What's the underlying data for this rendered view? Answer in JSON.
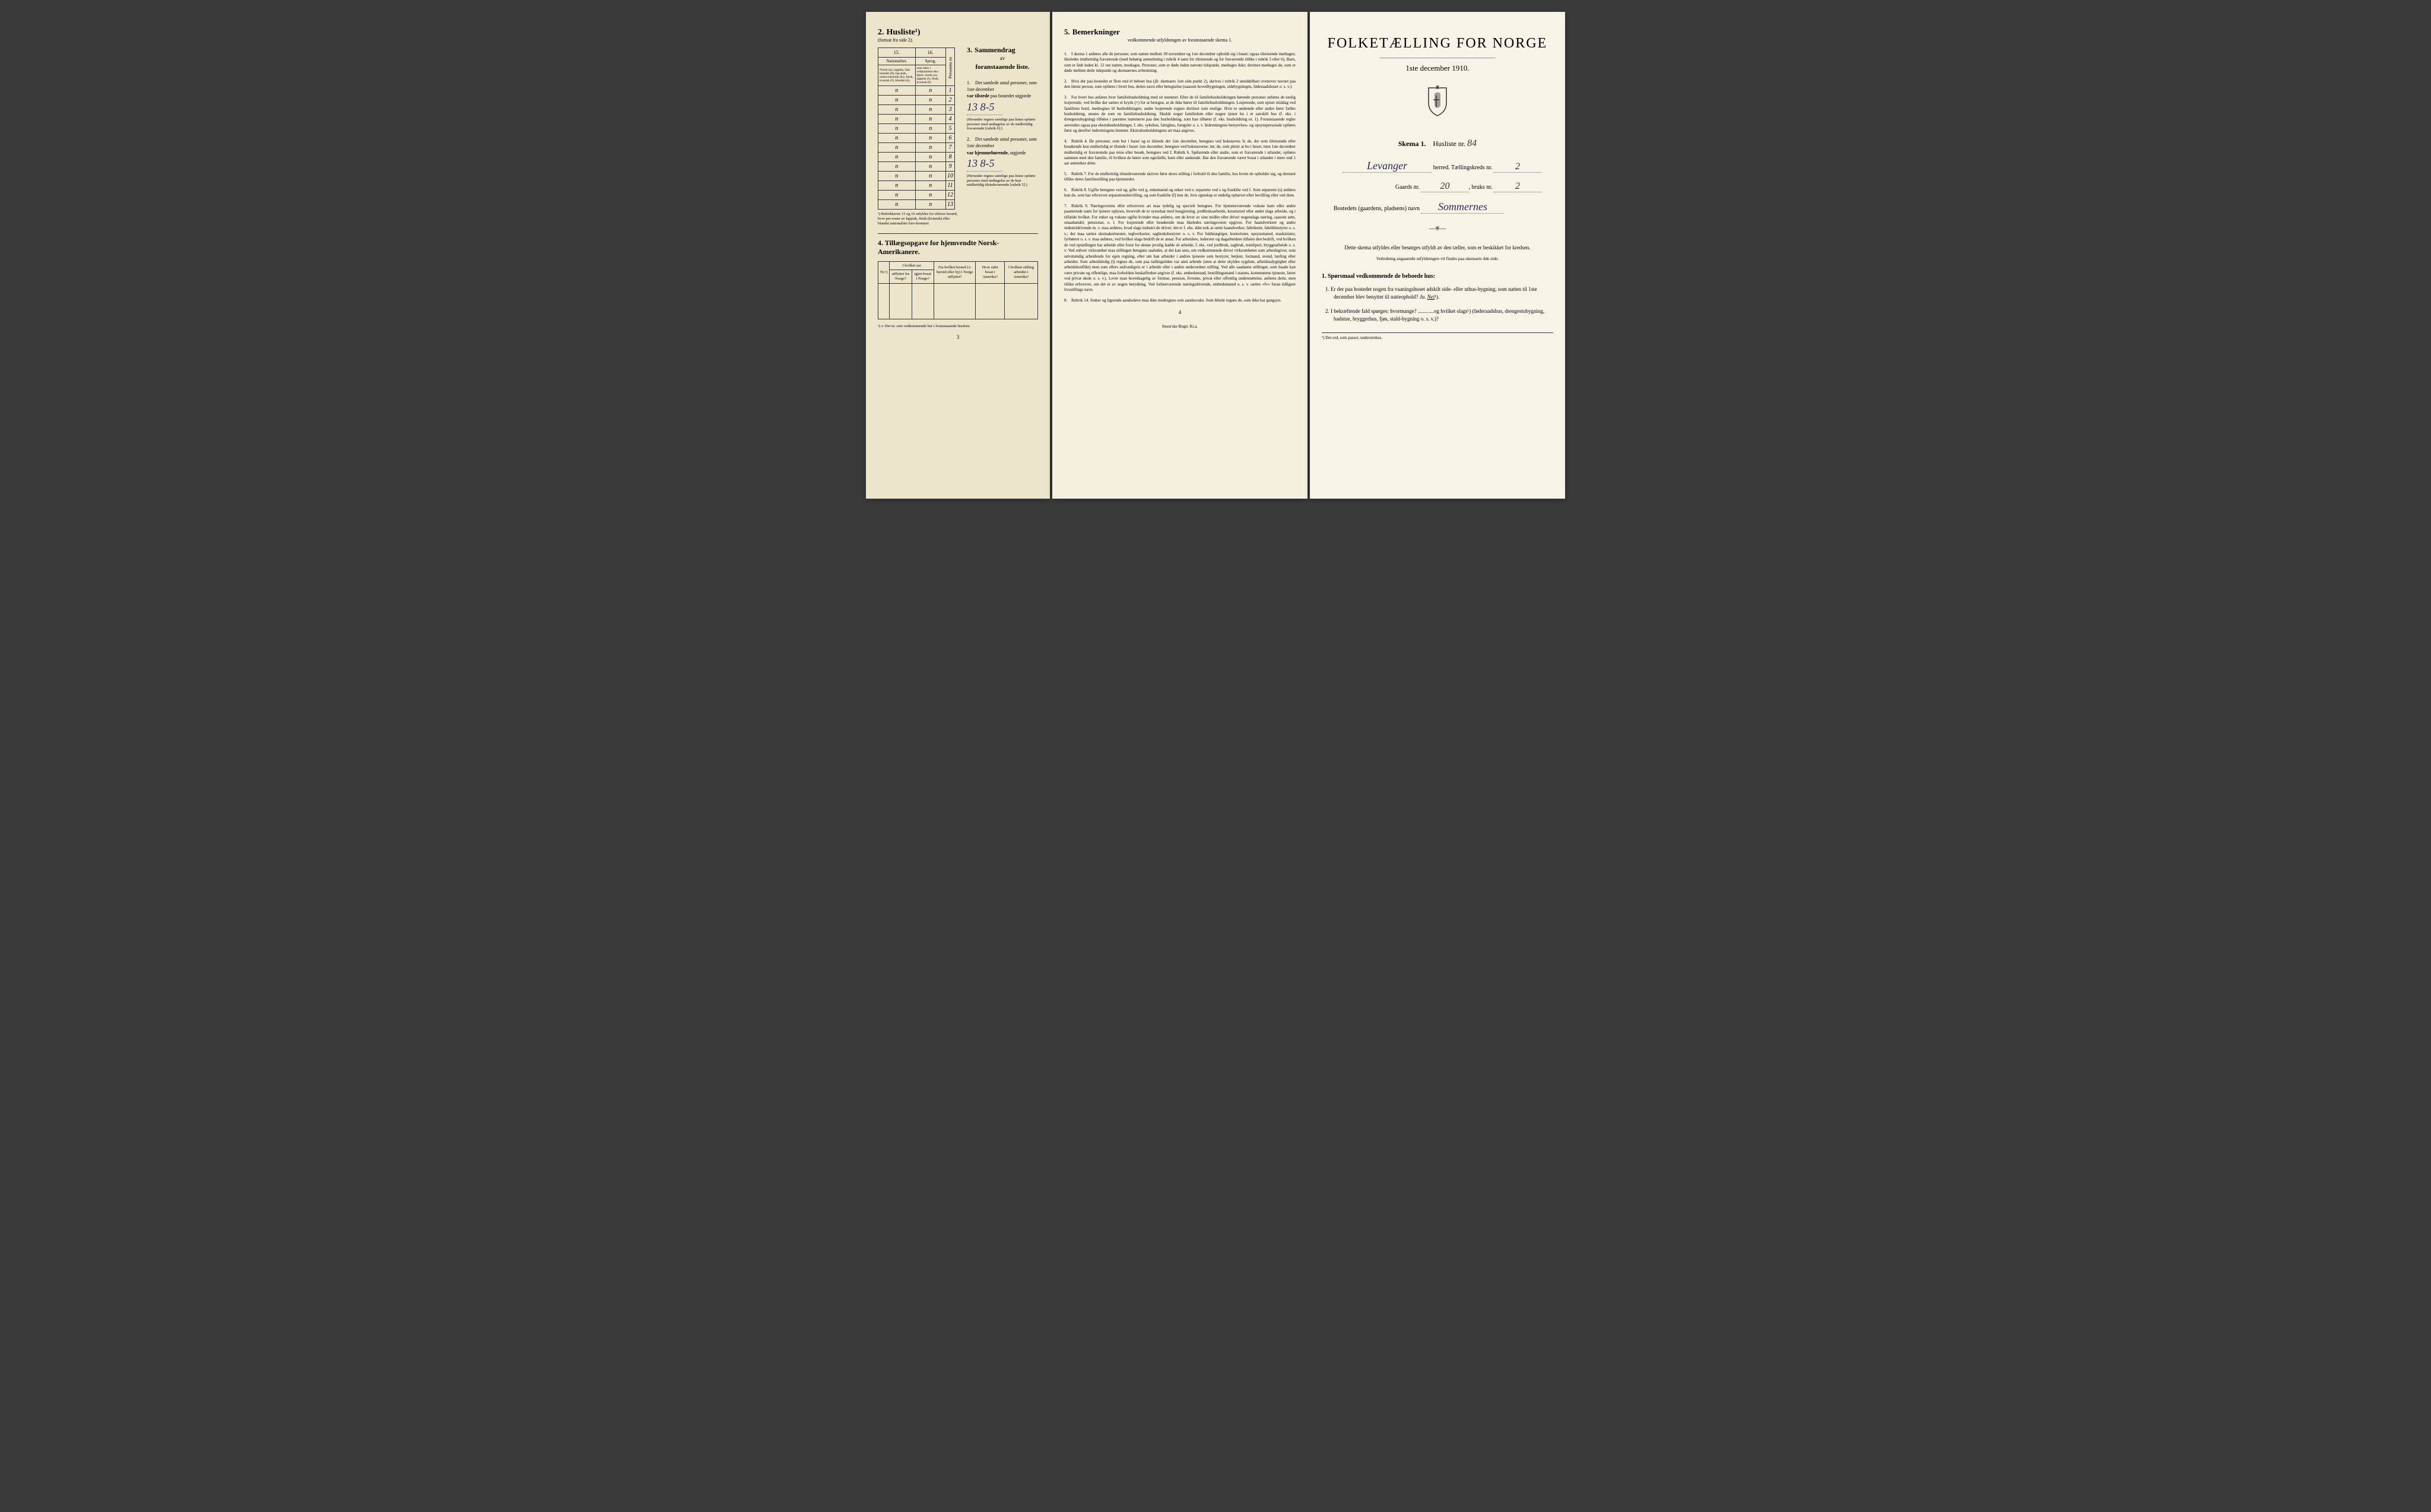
{
  "left": {
    "husliste_num": "2.",
    "husliste_title": "Husliste¹)",
    "husliste_sub": "(fortsat fra side 2).",
    "table": {
      "col15": "15.",
      "col16": "16.",
      "nationalitet": "Nationalitet.",
      "sprog": "Sprog,",
      "nat_text": "Norsk (n), lappisk, fast-boende (lf), lap-pisk, noma-iserende (ln), finsk, kvænsk (f), blandet (b).",
      "sprog_text": "som tales i vedkommen-des hjem: norsk (n), lappisk (l), finsk, kvænsk (f).",
      "pers_nr": "Personens nr.",
      "rows": [
        {
          "c1": "n",
          "c2": "n",
          "n": "1"
        },
        {
          "c1": "n",
          "c2": "n",
          "n": "2"
        },
        {
          "c1": "n",
          "c2": "n",
          "n": "3"
        },
        {
          "c1": "n",
          "c2": "n",
          "n": "4"
        },
        {
          "c1": "n",
          "c2": "n",
          "n": "5"
        },
        {
          "c1": "n",
          "c2": "n",
          "n": "6"
        },
        {
          "c1": "n",
          "c2": "n",
          "n": "7"
        },
        {
          "c1": "n",
          "c2": "n",
          "n": "8"
        },
        {
          "c1": "n",
          "c2": "n",
          "n": "9"
        },
        {
          "c1": "n",
          "c2": "n",
          "n": "10"
        },
        {
          "c1": "n",
          "c2": "n",
          "n": "11"
        },
        {
          "c1": "n",
          "c2": "n",
          "n": "12"
        },
        {
          "c1": "n",
          "c2": "n",
          "n": "13"
        }
      ],
      "table_footnote": "¹) Rubrikkerne 15 og 16 utfyldes for ethvert bosted, hvor per-soner av lappisk, finsk (kvænsk) eller blandet nationalitet fore-kommer."
    },
    "sammendrag": {
      "num": "3.",
      "title": "Sammendrag",
      "sub": "av",
      "sub2": "foranstaaende liste.",
      "q1_text": "Det samlede antal personer, som 1ste december",
      "q1_bold": "var tilstede",
      "q1_rest": "paa bostedet utgjorde",
      "q1_val": "13 8-5",
      "q1_note": "(Herunder regnes samtlige paa listen opførte personer med undtagelse av de midlertidig fraværende [rubrik 6].)",
      "q2_text": "Det samlede antal personer, som 1ste december",
      "q2_bold": "var hjemmehørende,",
      "q2_rest": "utgjorde",
      "q2_val": "13 8-5",
      "q2_note": "(Herunder regnes samtlige paa listen opførte personer med undtagelse av de kun midlertidig tilstedeværende [rubrik 5].)"
    },
    "tillaeg": {
      "num": "4.",
      "title": "Tillægsopgave for hjemvendte Norsk-Amerikanere.",
      "headers": [
        "Nr.²)",
        "utflyttet fra Norge?",
        "igjen bosat i Norge?",
        "Fra hvilket bosted (ɔ: herred eller by) i Norge utflyttet?",
        "Hvor sidst bosat i Amerika?",
        "I hvilken stilling arbeidet i Amerika?"
      ],
      "header_top": "I hvilket aar"
    },
    "footnote2": "²) ɔ: Det nr. som vedkommende har i foranstaaende husliste.",
    "page_num": "3"
  },
  "middle": {
    "num": "5.",
    "title": "Bemerkninger",
    "sub": "vedkommende utfyldningen av foranstaaende skema 1.",
    "items": [
      "I skema 1 anføres alle de personer, som natten mellem 30 november og 1ste december opholdt sig i huset; ogsaa tilreisende medtages; likeledes midlertidig fraværende (med behørig anmerkning i rubrik 4 samt for tilreisende og for fraværende tillike i rubrik 5 eller 6). Barn, som er født inden kl. 12 om natten, medtages. Personer, som er døde inden nævnte tidspunkt, medtages ikke; derimot medtages de, som er døde mellem dette tidspunkt og skemaernes avhentning.",
      "Hvis der paa bostedet er flere end ét beboet hus (jfr. skemaets 1ste side punkt 2), skrives i rubrik 2 umiddelbart ovenover navnet paa den første person, som opføres i hvert hus, dettes navn eller betegnelse (saasom hovedbygningen, sidebygningen, føderaadshuset o. s. v.).",
      "For hvert hus anføres hver familiehusholdning med sit nummer. Efter de til familiehusholdningen hørende personer anføres de enslig losjerende, ved hvilke der sættes et kryds (×) for at betegne, at de ikke hører til familiehusholdningen. Losjerende, som spiser middag ved familiens bord, medregnes til husholdningen; andre losjerende regnes derimot som enslige. Hvis to søskende eller andre fører fælles husholdning, ansees de som en familiehusholdning. Skulde noget familielem eller nogen tjener bo i et særskilt hus (f. eks. i drengestubygning) tilføies i parentes nummeret paa den husholdning, som han tilhører (f. eks. husholdning nr. 1). Foranstaaende regler anvendes ogsaa paa ekstrahusholdninger, f. eks. sykehus, fattighus, fængsler o. s. v. Indretningens bestyrelses- og opsynspersonale opføres først og derefter indretningens lemmer. Ekstrahusholdningens art maa angives.",
      "Rubrik 4. De personer, som bor i huset og er tilstede der 1ste december, betegnes ved bokstaven: b; de, der som tilreisende eller besøkende kun midlertidig er tilstede i huset 1ste december, betegnes ved bokstaverne: mt; de, som pleier at bo i huset, men 1ste december midlertidig er fraværende paa reise eller besøk, betegnes ved f. Rubrik 6. Sjøfarende eller andre, som er fraværende i utlandet, opføres sammen med den familie, til hvilken de hører som egtefælle, barn eller søskende. Har den fraværende været bosat i utlandet i mere end 1 aar anmerkes dette.",
      "Rubrik 7. For de midlertidig tilstedeværende skrives først deres stilling i forhold til den familie, hos hvem de opholder sig, og dernæst tillike deres familiestilling paa hjemstedet.",
      "Rubrik 8. Ugifte betegnes ved ug, gifte ved g, enkemænd og enker ved e, separerte ved s og fraskilte ved f. Som separerte (s) anføres kun de, som har erhvervet separationsbevilling, og som fraskilte (f) kun de, hvis egteskap er endelig ophævet efter bevilling eller ved dom.",
      "Rubrik 9. Næringsveiens eller erhvervets art maa tydelig og specielt betegnes. For hjemmeværende voksne barn eller andre paarørende samt for tjenere oplyses, hvorvidt de er sysselsat med husgjerning, jordbruksarbeide, kreaturstel eller andet slags arbeide, og i tilfælde hvilket. For enker og voksne ugifte kvinder maa anføres, om de lever av sine midler eller driver nogenslags næring, saasom søm, smaahandel, pensionat, o. l. For losjerende eller besøkende maa likeledes næringsveien opgives. For haandverkere og andre industridrivende m. v. maa anføres, hvad slags industri de driver; det er f. eks. ikke nok at sætte haandverker, fabrikeier, fabrikbestyrer o. s. v.; der maa sættes skomakermester, teglverkseier, sagbruksbestyrer o. s. v. For fuldmægtiger, kontorister, opsynsmænd, maskinister, fyrbøtere o. s. v. maa anføres, ved hvilket slags bedrift de er ansat. For arbeidere, inderster og dagarbeidere tilføies den bedrift, ved hvilken de ved optællingen har arbeide eller forut for denne jevnlig hadde sit arbeide, f. eks. ved jordbruk, sagbruk, træsliperi, bryggearbeide o. s. v. Ved enhver virksomhet maa stillingen betegnes saaledes, at det kan sees, om vedkommende driver virksomheten som arbeidsgiver, som selvstændig arbeidende for egen regning, eller om han arbeider i andres tjeneste som bestyrer, betjent, formand, svend, lærling eller arbeider. Som arbeidsledig (l) regnes de, som paa tællingstiden var uten arbeide (uten at dette skyldes sygdom, arbeidsudygtighet eller arbeidskonflikt) men som ellers sedvanligvis er i arbeide eller i anden underordnet stilling. Ved alle saadanne stillinger, som baade kan være private og offentlige, maa forholdets beskaffenhet angives (f. eks. embedsmand, bestillingsmand i statens, kommunens tjeneste, lærer ved privat skole o. s. v.). Lever man hovedsagelig av formue, pension, livrente, privat eller offentlig understøttelse, anføres dette, men tillike erhvervet, om det er av nogen betydning. Ved forhenværende næringsdrivende, embedsmænd o. s. v. sættes «fv» foran tidligere livsstillings navn.",
      "Rubrik 14. Sinker og lignende aandssløve maa ikke medregnes som aandssvake. Som blinde regnes de, som ikke har gangsyn."
    ],
    "page_num": "4",
    "bottom": "Steen'ske Bogtr. Kr.a."
  },
  "right": {
    "main_title": "FOLKETÆLLING FOR NORGE",
    "date": "1ste december 1910.",
    "skema": "Skema 1.",
    "husliste_label": "Husliste nr.",
    "husliste_val": "84",
    "herred_val": "Levanger",
    "herred_label": "herred.",
    "kreds_label": "Tællingskreds nr.",
    "kreds_val": "2",
    "gaards_label": "Gaards nr.",
    "gaards_val": "20",
    "bruks_label": "bruks nr.",
    "bruks_val": "2",
    "bosted_label": "Bostedets (gaardens, pladsens) navn",
    "bosted_val": "Sommernes",
    "instruction": "Dette skema utfyldes eller besørges utfyldt av den tæller, som er beskikket for kredsen.",
    "instruction_small": "Veiledning angaaende utfyldningen vil findes paa skemaets 4de side.",
    "sporsmaal_header": "1. Spørsmaal vedkommende de beboede hus:",
    "q1": "Er der paa bostedet nogen fra vaaningshuset adskilt side- eller uthus-bygning, som natten til 1ste december blev benyttet til natteophold?",
    "q1_ja": "Ja.",
    "q1_nei": "Nei",
    "q2": "I bekræftende fald spørges: hvormange? ............og hvilket slags¹) (føderaadshus, drengestubygning, badstue, bryggerhus, fjøs, stald-bygning o. s. v.)?",
    "footnote": "¹) Det ord, som passer, understrekes."
  },
  "colors": {
    "bg_left": "#ece5cc",
    "bg_middle": "#f5f0e0",
    "bg_right": "#f7f3e6",
    "text": "#1a1a1a",
    "handwriting": "#2a2a5a"
  }
}
